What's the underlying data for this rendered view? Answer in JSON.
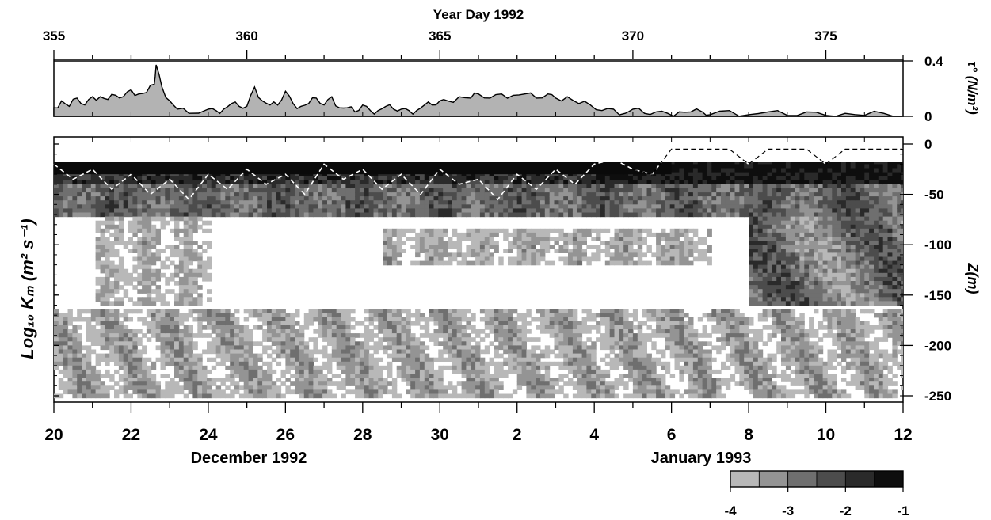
{
  "chart_data": [
    {
      "type": "area",
      "panel": "stress",
      "title": "",
      "top_axis_label": "Year Day 1992",
      "top_ticks": [
        "355",
        "360",
        "365",
        "370",
        "375"
      ],
      "top_tick_values": [
        355,
        360,
        365,
        370,
        375
      ],
      "ylabel": "τ° (N/m²)",
      "y_tick_labels": [
        "0.4",
        "0"
      ],
      "y_tick_values": [
        0.4,
        0
      ],
      "ylim": [
        0,
        0.4
      ],
      "xlim": [
        355,
        377
      ],
      "series": [
        {
          "x": [
            355.0,
            355.2,
            355.4,
            355.6,
            355.8,
            356.0,
            356.2,
            356.4,
            356.6,
            356.8,
            357.0,
            357.2,
            357.4,
            357.6,
            357.65,
            357.8,
            358.0,
            358.2,
            358.5,
            359.0,
            359.2,
            359.4,
            359.6,
            359.8,
            360.0,
            360.2,
            360.4,
            360.6,
            360.8,
            361.0,
            361.2,
            361.4,
            361.6,
            361.8,
            362.0,
            362.2,
            362.4,
            362.6,
            362.8,
            363.0,
            363.2,
            363.4,
            363.6,
            363.8,
            364.0,
            364.2,
            364.4,
            364.6,
            364.8,
            365.0,
            365.2,
            365.5,
            365.8,
            366.0,
            366.3,
            366.6,
            366.9,
            367.2,
            367.5,
            367.8,
            368.0,
            368.3,
            368.6,
            368.9,
            369.2,
            369.5,
            369.8,
            370.0,
            370.3,
            370.6,
            370.9,
            371.2,
            371.5,
            371.8,
            372.0,
            372.5,
            373.0,
            373.5,
            374.0,
            374.5,
            375.0,
            375.5,
            376.0,
            376.5,
            377.0
          ],
          "values": [
            0.07,
            0.1,
            0.08,
            0.12,
            0.09,
            0.13,
            0.15,
            0.11,
            0.16,
            0.13,
            0.2,
            0.15,
            0.18,
            0.22,
            0.38,
            0.2,
            0.12,
            0.04,
            0.03,
            0.04,
            0.05,
            0.04,
            0.1,
            0.06,
            0.08,
            0.2,
            0.12,
            0.07,
            0.09,
            0.17,
            0.1,
            0.06,
            0.1,
            0.12,
            0.09,
            0.13,
            0.07,
            0.05,
            0.04,
            0.07,
            0.05,
            0.03,
            0.08,
            0.04,
            0.06,
            0.03,
            0.05,
            0.07,
            0.09,
            0.1,
            0.12,
            0.13,
            0.14,
            0.15,
            0.14,
            0.15,
            0.16,
            0.15,
            0.14,
            0.15,
            0.14,
            0.13,
            0.1,
            0.07,
            0.05,
            0.04,
            0.03,
            0.04,
            0.03,
            0.02,
            0.03,
            0.02,
            0.04,
            0.02,
            0.02,
            0.03,
            0.02,
            0.02,
            0.015,
            0.02,
            0.015,
            0.01,
            0.015,
            0.01,
            0.01
          ]
        }
      ]
    },
    {
      "type": "heatmap",
      "panel": "mixing",
      "ylabel": "Log₁₀ Kₘ (m² s⁻¹)",
      "right_ylabel": "Z(m)",
      "y_tick_labels": [
        "0",
        "-50",
        "-100",
        "-150",
        "-200",
        "-250"
      ],
      "y_tick_values": [
        0,
        -50,
        -100,
        -150,
        -200,
        -250
      ],
      "ylim": [
        -260,
        5
      ],
      "xlim": [
        355,
        377
      ],
      "bottom_ticks": [
        "20",
        "22",
        "24",
        "26",
        "28",
        "30",
        "2",
        "4",
        "6",
        "8",
        "10",
        "12"
      ],
      "bottom_tick_values": [
        355,
        357,
        359,
        361,
        363,
        365,
        367,
        369,
        371,
        373,
        375,
        377
      ],
      "month_labels": [
        "December 1992",
        "January 1993"
      ],
      "colorbar": {
        "levels": [
          -4,
          -3.5,
          -3,
          -2.5,
          -2,
          -1.5,
          -1
        ],
        "tick_labels": [
          "-4",
          "-3",
          "-2",
          "-1"
        ],
        "tick_values": [
          -4,
          -3,
          -2,
          -1
        ],
        "colors": [
          "#b8b8b8",
          "#949494",
          "#6f6f6f",
          "#4c4c4c",
          "#2a2a2a",
          "#0e0e0e"
        ]
      },
      "mixed_layer_depth": {
        "x": [
          355.0,
          355.5,
          356.0,
          356.5,
          357.0,
          357.5,
          358.0,
          358.5,
          359.0,
          359.5,
          360.0,
          360.5,
          361.0,
          361.5,
          362.0,
          362.5,
          363.0,
          363.5,
          364.0,
          364.5,
          365.0,
          365.5,
          366.0,
          366.5,
          367.0,
          367.5,
          368.0,
          368.5,
          369.0,
          369.5,
          370.0,
          370.5,
          371.0,
          371.5,
          372.0,
          372.5,
          373.0,
          373.5,
          374.0,
          374.5,
          375.0,
          375.5,
          376.0,
          376.5,
          377.0
        ],
        "values": [
          -20,
          -35,
          -25,
          -45,
          -30,
          -50,
          -35,
          -55,
          -30,
          -45,
          -25,
          -40,
          -30,
          -50,
          -20,
          -35,
          -25,
          -45,
          -30,
          -50,
          -25,
          -40,
          -35,
          -55,
          -30,
          -45,
          -25,
          -40,
          -20,
          -15,
          -25,
          -30,
          -5,
          -5,
          -5,
          -5,
          -20,
          -5,
          -5,
          -5,
          -20,
          -5,
          -5,
          -5,
          -5
        ]
      },
      "contour_samples": [
        {
          "x": 355.5,
          "depth": -30,
          "log10_Km": -1.5
        },
        {
          "x": 358.0,
          "depth": -30,
          "log10_Km": -1.0
        },
        {
          "x": 362.0,
          "depth": -30,
          "log10_Km": -1.5
        },
        {
          "x": 366.5,
          "depth": -30,
          "log10_Km": -1.0
        },
        {
          "x": 373.5,
          "depth": -60,
          "log10_Km": -2.5
        },
        {
          "x": 374.0,
          "depth": -130,
          "log10_Km": -3.0
        },
        {
          "x": 357.0,
          "depth": -210,
          "log10_Km": -3.5
        },
        {
          "x": 364.0,
          "depth": -210,
          "log10_Km": -3.0
        },
        {
          "x": 370.0,
          "depth": -200,
          "log10_Km": -3.5
        },
        {
          "x": 366.0,
          "depth": -100,
          "log10_Km": -4.5
        }
      ]
    }
  ]
}
